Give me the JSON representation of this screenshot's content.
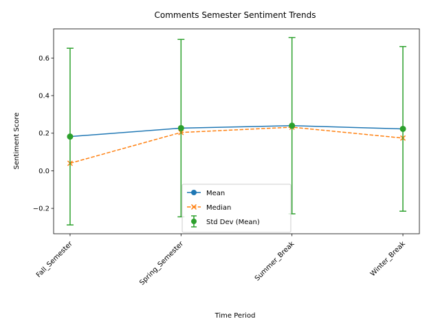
{
  "chart_data": {
    "type": "line",
    "title": "Comments Semester Sentiment Trends",
    "xlabel": "Time Period",
    "ylabel": "Sentiment Score",
    "categories": [
      "Fall_Semester",
      "Spring_Semester",
      "Summer_Break",
      "Winter_Break"
    ],
    "ylim": [
      -0.335,
      0.755
    ],
    "yticks": [
      -0.2,
      0.0,
      0.2,
      0.4,
      0.6
    ],
    "ytick_labels": [
      "−0.2",
      "0.0",
      "0.2",
      "0.4",
      "0.6"
    ],
    "grid": false,
    "legend_position": "lower center",
    "series": [
      {
        "name": "Mean",
        "values": [
          0.182,
          0.227,
          0.24,
          0.223
        ],
        "color": "#1f77b4",
        "style": "solid",
        "marker": "circle"
      },
      {
        "name": "Median",
        "values": [
          0.04,
          0.204,
          0.232,
          0.174
        ],
        "color": "#ff7f0e",
        "style": "dashed",
        "marker": "x"
      }
    ],
    "error_bars": {
      "name": "Std Dev (Mean)",
      "color": "#2ca02c",
      "center": [
        0.182,
        0.227,
        0.24,
        0.223
      ],
      "std": [
        0.47,
        0.472,
        0.469,
        0.438
      ]
    }
  }
}
